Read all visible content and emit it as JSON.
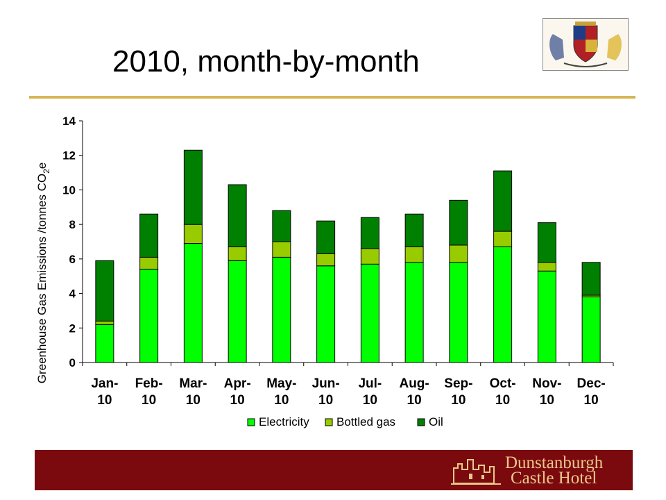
{
  "slide": {
    "title": "2010, month-by-month",
    "footer_logo_line1": "Dunstanburgh",
    "footer_logo_line2": "Castle Hotel"
  },
  "colors": {
    "electricity": "#00ff00",
    "bottled_gas": "#99cc00",
    "oil": "#008000",
    "rule": "#d6b656",
    "footer": "#7b0a0f"
  },
  "chart_data": {
    "type": "bar",
    "stacked": true,
    "categories": [
      [
        "Jan-",
        "10"
      ],
      [
        "Feb-",
        "10"
      ],
      [
        "Mar-",
        "10"
      ],
      [
        "Apr-",
        "10"
      ],
      [
        "May-",
        "10"
      ],
      [
        "Jun-",
        "10"
      ],
      [
        "Jul-",
        "10"
      ],
      [
        "Aug-",
        "10"
      ],
      [
        "Sep-",
        "10"
      ],
      [
        "Oct-",
        "10"
      ],
      [
        "Nov-",
        "10"
      ],
      [
        "Dec-",
        "10"
      ]
    ],
    "series": [
      {
        "name": "Electricity",
        "values": [
          2.2,
          5.4,
          6.9,
          5.9,
          6.1,
          5.6,
          5.7,
          5.8,
          5.8,
          6.7,
          5.3,
          3.8
        ]
      },
      {
        "name": "Bottled gas",
        "values": [
          0.2,
          0.7,
          1.1,
          0.8,
          0.9,
          0.7,
          0.9,
          0.9,
          1.0,
          0.9,
          0.5,
          0.1
        ]
      },
      {
        "name": "Oil",
        "values": [
          3.5,
          2.5,
          4.3,
          3.6,
          1.8,
          1.9,
          1.8,
          1.9,
          2.6,
          3.5,
          2.3,
          1.9
        ]
      }
    ],
    "ylabel_main": "Greenhouse Gas Emissions /tonnes CO",
    "ylabel_sub": "2",
    "ylabel_end": "e",
    "ylim": [
      0,
      14
    ],
    "yticks": [
      0,
      2,
      4,
      6,
      8,
      10,
      12,
      14
    ],
    "grid": false,
    "legend_position": "bottom"
  }
}
